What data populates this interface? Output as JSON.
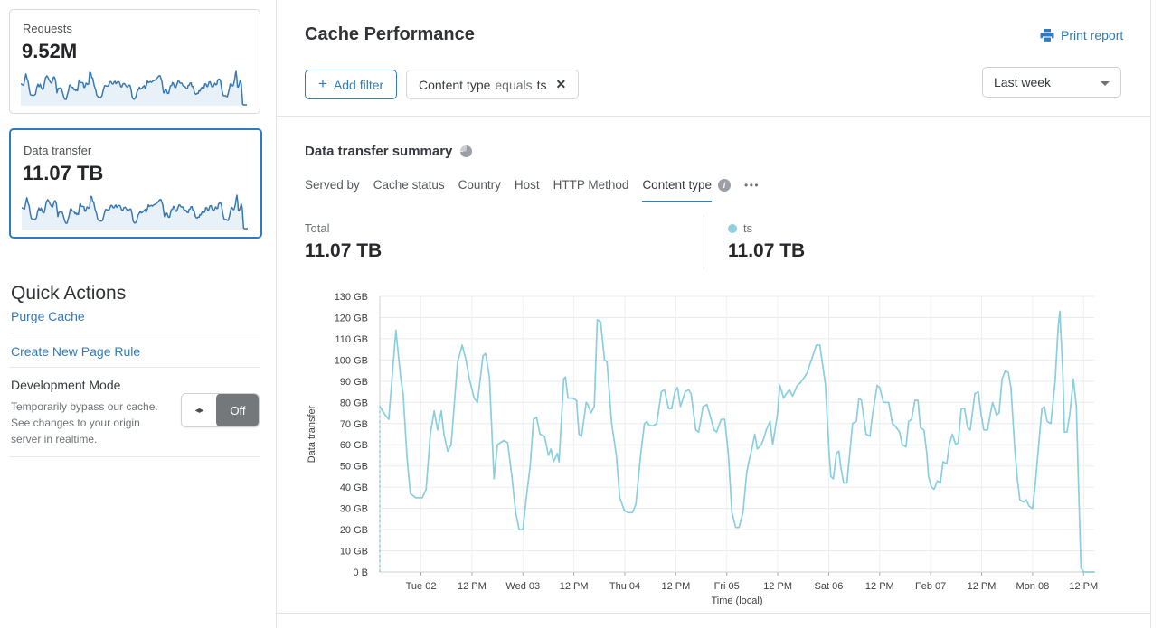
{
  "colors": {
    "accent_blue": "#2f7bbf",
    "chart_line": "#89cfdf",
    "legend_dot": "#8fcfe0",
    "spark_stroke": "#3779b5",
    "spark_fill": "#e9f1f8",
    "tab_underline": "#3f7fa8"
  },
  "sidebar": {
    "requests_card": {
      "label": "Requests",
      "value": "9.52M"
    },
    "data_transfer_card": {
      "label": "Data transfer",
      "value": "11.07 TB"
    },
    "quick_actions": {
      "title": "Quick Actions",
      "links": [
        "Purge Cache",
        "Create New Page Rule"
      ],
      "dev_mode": {
        "title": "Development Mode",
        "description": "Temporarily bypass our cache. See changes to your origin server in realtime.",
        "grip_icon": "◂▸",
        "toggle_label": "Off"
      }
    }
  },
  "header": {
    "title": "Cache Performance",
    "print_report": {
      "label": "Print report"
    },
    "add_filter": {
      "icon": "+",
      "label": "Add filter"
    },
    "filter_chip": {
      "field": "Content type",
      "operator": "equals",
      "value": "ts",
      "remove_icon": "✕"
    },
    "time_range": {
      "value": "Last week"
    }
  },
  "summary": {
    "title": "Data transfer summary",
    "tabs": [
      "Served by",
      "Cache status",
      "Country",
      "Host",
      "HTTP Method",
      "Content type"
    ],
    "active_tab": "Content type",
    "info_icon_glyph": "i",
    "more_icon": "•••",
    "stats": [
      {
        "label": "Total",
        "value": "11.07 TB"
      },
      {
        "label": "ts",
        "value": "11.07 TB",
        "dot_color": "#8fcfe0"
      }
    ]
  },
  "chart_data": {
    "type": "line",
    "title": "Data transfer summary",
    "xlabel": "Time (local)",
    "ylabel": "Data transfer",
    "x_unit": "hours from range start",
    "x_range": [
      0,
      168.2
    ],
    "ylim": [
      0,
      130
    ],
    "y_unit": "GB",
    "grid": true,
    "leading_dashed": true,
    "y_ticks": [
      {
        "gb": 0,
        "label": "0 B"
      },
      {
        "gb": 10,
        "label": "10 GB"
      },
      {
        "gb": 20,
        "label": "20 GB"
      },
      {
        "gb": 30,
        "label": "30 GB"
      },
      {
        "gb": 40,
        "label": "40 GB"
      },
      {
        "gb": 50,
        "label": "50 GB"
      },
      {
        "gb": 60,
        "label": "60 GB"
      },
      {
        "gb": 70,
        "label": "70 GB"
      },
      {
        "gb": 80,
        "label": "80 GB"
      },
      {
        "gb": 90,
        "label": "90 GB"
      },
      {
        "gb": 100,
        "label": "100 GB"
      },
      {
        "gb": 110,
        "label": "110 GB"
      },
      {
        "gb": 120,
        "label": "120 GB"
      },
      {
        "gb": 130,
        "label": "130 GB"
      }
    ],
    "x_ticks": [
      {
        "hour": 9.7,
        "label": "Tue 02"
      },
      {
        "hour": 21.7,
        "label": "12 PM"
      },
      {
        "hour": 33.7,
        "label": "Wed 03"
      },
      {
        "hour": 45.7,
        "label": "12 PM"
      },
      {
        "hour": 57.7,
        "label": "Thu 04"
      },
      {
        "hour": 69.7,
        "label": "12 PM"
      },
      {
        "hour": 81.7,
        "label": "Fri 05"
      },
      {
        "hour": 93.7,
        "label": "12 PM"
      },
      {
        "hour": 105.7,
        "label": "Sat 06"
      },
      {
        "hour": 117.7,
        "label": "12 PM"
      },
      {
        "hour": 129.7,
        "label": "Feb 07"
      },
      {
        "hour": 141.7,
        "label": "12 PM"
      },
      {
        "hour": 153.7,
        "label": "Mon 08"
      },
      {
        "hour": 165.7,
        "label": "12 PM"
      }
    ],
    "series": [
      {
        "name": "ts",
        "total": "11.07 TB",
        "color": "#89cfdf",
        "points": [
          [
            0,
            78
          ],
          [
            1.3,
            74
          ],
          [
            2.1,
            72
          ],
          [
            3.8,
            114
          ],
          [
            4.9,
            92
          ],
          [
            5.5,
            84
          ],
          [
            6.4,
            54
          ],
          [
            7.2,
            37
          ],
          [
            8.5,
            35
          ],
          [
            10,
            35
          ],
          [
            10.9,
            39
          ],
          [
            11.9,
            65
          ],
          [
            12.8,
            76
          ],
          [
            13.6,
            67
          ],
          [
            14.5,
            76
          ],
          [
            15.1,
            65
          ],
          [
            16,
            57
          ],
          [
            16.8,
            60
          ],
          [
            18.3,
            99
          ],
          [
            19.4,
            107
          ],
          [
            20.3,
            100
          ],
          [
            21.1,
            91
          ],
          [
            22.2,
            82
          ],
          [
            23,
            80
          ],
          [
            24.3,
            102
          ],
          [
            24.9,
            103
          ],
          [
            25.8,
            92
          ],
          [
            26.9,
            44
          ],
          [
            27.7,
            60
          ],
          [
            29.2,
            62
          ],
          [
            30.1,
            61
          ],
          [
            31.1,
            45
          ],
          [
            32,
            28
          ],
          [
            32.8,
            20
          ],
          [
            33.7,
            20
          ],
          [
            34.5,
            35
          ],
          [
            35.4,
            50
          ],
          [
            36.2,
            72
          ],
          [
            36.9,
            73
          ],
          [
            37.7,
            65
          ],
          [
            38.8,
            64
          ],
          [
            39.7,
            55
          ],
          [
            40.3,
            58
          ],
          [
            40.9,
            52
          ],
          [
            41.8,
            56
          ],
          [
            42.2,
            52
          ],
          [
            43.3,
            91
          ],
          [
            43.7,
            92
          ],
          [
            44.3,
            82
          ],
          [
            45.4,
            82
          ],
          [
            46.3,
            81
          ],
          [
            46.9,
            65
          ],
          [
            47.5,
            64
          ],
          [
            48.6,
            80
          ],
          [
            49,
            79
          ],
          [
            49.7,
            75
          ],
          [
            50.5,
            78
          ],
          [
            51.2,
            119
          ],
          [
            52,
            118
          ],
          [
            52.9,
            100
          ],
          [
            53.5,
            99
          ],
          [
            54.6,
            70
          ],
          [
            55.7,
            55
          ],
          [
            56.5,
            35
          ],
          [
            57.6,
            29
          ],
          [
            58.4,
            28
          ],
          [
            59.5,
            28
          ],
          [
            60.3,
            32
          ],
          [
            61.4,
            55
          ],
          [
            62.3,
            70
          ],
          [
            62.9,
            71
          ],
          [
            63.5,
            69
          ],
          [
            64.4,
            69
          ],
          [
            65.2,
            70
          ],
          [
            66.3,
            85
          ],
          [
            67,
            86
          ],
          [
            68,
            77
          ],
          [
            68.7,
            77
          ],
          [
            69.5,
            85
          ],
          [
            70.1,
            87
          ],
          [
            70.8,
            78
          ],
          [
            71.9,
            85
          ],
          [
            72.7,
            86
          ],
          [
            73.3,
            84
          ],
          [
            74.4,
            67
          ],
          [
            75.1,
            66
          ],
          [
            76.1,
            78
          ],
          [
            77,
            79
          ],
          [
            77.6,
            75
          ],
          [
            78.7,
            67
          ],
          [
            79.3,
            66
          ],
          [
            80.4,
            72
          ],
          [
            81.2,
            72
          ],
          [
            82.1,
            55
          ],
          [
            82.9,
            28
          ],
          [
            83.8,
            21
          ],
          [
            84.6,
            21
          ],
          [
            85.5,
            28
          ],
          [
            86.4,
            47
          ],
          [
            87,
            53
          ],
          [
            87.6,
            58
          ],
          [
            88.3,
            65
          ],
          [
            88.9,
            58
          ],
          [
            89.8,
            60
          ],
          [
            90.4,
            63
          ],
          [
            91,
            67
          ],
          [
            91.9,
            71
          ],
          [
            92.5,
            60
          ],
          [
            93.6,
            74
          ],
          [
            94.2,
            88
          ],
          [
            95.1,
            82
          ],
          [
            95.7,
            84
          ],
          [
            96.4,
            86
          ],
          [
            97.2,
            83
          ],
          [
            98.3,
            88
          ],
          [
            98.9,
            89
          ],
          [
            100,
            92
          ],
          [
            100.6,
            94
          ],
          [
            102.8,
            107
          ],
          [
            103.6,
            107
          ],
          [
            104.3,
            97
          ],
          [
            104.9,
            89
          ],
          [
            105.8,
            56
          ],
          [
            106.2,
            45
          ],
          [
            106.8,
            44
          ],
          [
            107.5,
            56
          ],
          [
            108.1,
            57
          ],
          [
            108.5,
            50
          ],
          [
            109.2,
            42
          ],
          [
            110,
            42
          ],
          [
            110.7,
            57
          ],
          [
            111.3,
            70
          ],
          [
            112.2,
            71
          ],
          [
            112.8,
            82
          ],
          [
            113.4,
            81
          ],
          [
            114.5,
            65
          ],
          [
            115.4,
            64
          ],
          [
            116,
            74
          ],
          [
            117.1,
            88
          ],
          [
            117.7,
            87
          ],
          [
            118.6,
            80
          ],
          [
            119.2,
            80
          ],
          [
            119.8,
            80
          ],
          [
            120.7,
            70
          ],
          [
            121.3,
            69
          ],
          [
            122.4,
            66
          ],
          [
            123,
            60
          ],
          [
            123.9,
            59
          ],
          [
            124.5,
            71
          ],
          [
            125.2,
            72
          ],
          [
            126,
            81
          ],
          [
            126.7,
            81
          ],
          [
            127.3,
            68
          ],
          [
            128.1,
            67
          ],
          [
            128.8,
            56
          ],
          [
            129.2,
            45
          ],
          [
            129.9,
            40
          ],
          [
            130.5,
            39
          ],
          [
            131.3,
            43
          ],
          [
            132,
            42
          ],
          [
            132.6,
            52
          ],
          [
            133.5,
            51
          ],
          [
            134.1,
            60
          ],
          [
            134.8,
            65
          ],
          [
            135.6,
            60
          ],
          [
            136.2,
            61
          ],
          [
            136.9,
            77
          ],
          [
            137.7,
            77
          ],
          [
            138.4,
            68
          ],
          [
            139,
            67
          ],
          [
            140.1,
            84
          ],
          [
            140.9,
            85
          ],
          [
            141.6,
            74
          ],
          [
            142.2,
            67
          ],
          [
            143.1,
            67
          ],
          [
            143.7,
            74
          ],
          [
            144.3,
            80
          ],
          [
            145.2,
            74
          ],
          [
            145.8,
            75
          ],
          [
            146.5,
            91
          ],
          [
            147.3,
            95
          ],
          [
            148,
            94
          ],
          [
            148.6,
            87
          ],
          [
            149.5,
            58
          ],
          [
            150.1,
            44
          ],
          [
            150.7,
            34
          ],
          [
            151.6,
            33
          ],
          [
            152.2,
            34
          ],
          [
            152.9,
            31
          ],
          [
            153.7,
            30
          ],
          [
            154.4,
            43
          ],
          [
            155,
            57
          ],
          [
            155.9,
            77
          ],
          [
            156.5,
            78
          ],
          [
            157.1,
            71
          ],
          [
            158,
            70
          ],
          [
            159,
            90
          ],
          [
            159.7,
            115
          ],
          [
            160.1,
            123
          ],
          [
            160.8,
            95
          ],
          [
            161.2,
            66
          ],
          [
            161.8,
            66
          ],
          [
            162.5,
            75
          ],
          [
            163.3,
            91
          ],
          [
            164,
            78
          ],
          [
            164.4,
            48
          ],
          [
            165.1,
            2
          ],
          [
            165.7,
            0
          ],
          [
            167.2,
            0
          ],
          [
            168.2,
            0
          ]
        ]
      }
    ]
  }
}
